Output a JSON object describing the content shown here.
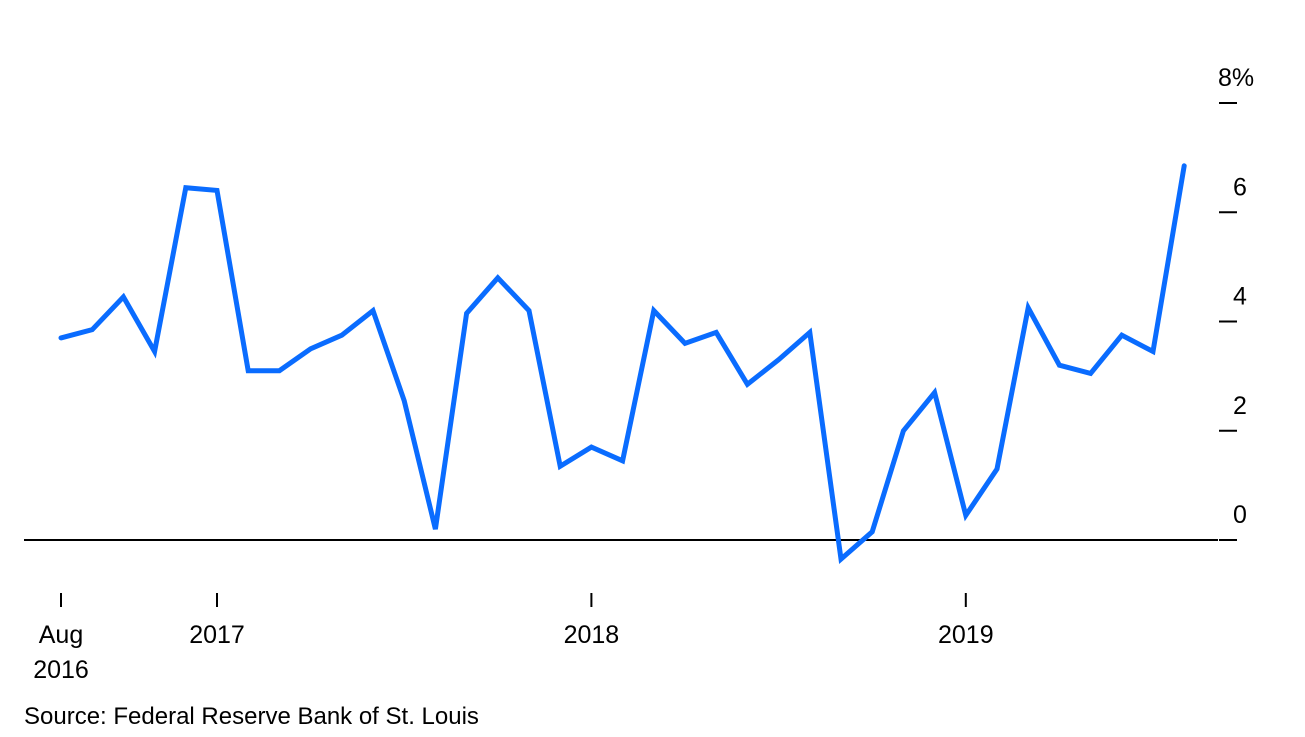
{
  "chart_data": {
    "type": "line",
    "ylim": [
      0,
      8
    ],
    "y_ticks": [
      {
        "value": 8,
        "label": "8%"
      },
      {
        "value": 6,
        "label": "6"
      },
      {
        "value": 4,
        "label": "4"
      },
      {
        "value": 2,
        "label": "2"
      },
      {
        "value": 0,
        "label": "0"
      }
    ],
    "x_ticks": [
      {
        "date": "2016-08",
        "label": [
          "Aug",
          "2016"
        ]
      },
      {
        "date": "2017-01",
        "label": [
          "2017"
        ]
      },
      {
        "date": "2018-01",
        "label": [
          "2018"
        ]
      },
      {
        "date": "2019-01",
        "label": [
          "2019"
        ]
      }
    ],
    "zero_line": true,
    "grid": false,
    "series": [
      {
        "color": "#0a6cff",
        "points": [
          {
            "x": "2016-08",
            "y": 3.7
          },
          {
            "x": "2016-09",
            "y": 3.85
          },
          {
            "x": "2016-10",
            "y": 4.45
          },
          {
            "x": "2016-11",
            "y": 3.45
          },
          {
            "x": "2016-12",
            "y": 6.45
          },
          {
            "x": "2017-01",
            "y": 6.4
          },
          {
            "x": "2017-02",
            "y": 3.1
          },
          {
            "x": "2017-03",
            "y": 3.1
          },
          {
            "x": "2017-04",
            "y": 3.5
          },
          {
            "x": "2017-05",
            "y": 3.75
          },
          {
            "x": "2017-06",
            "y": 4.2
          },
          {
            "x": "2017-07",
            "y": 2.55
          },
          {
            "x": "2017-08",
            "y": 0.2
          },
          {
            "x": "2017-09",
            "y": 4.15
          },
          {
            "x": "2017-10",
            "y": 4.8
          },
          {
            "x": "2017-11",
            "y": 4.2
          },
          {
            "x": "2017-12",
            "y": 1.35
          },
          {
            "x": "2018-01",
            "y": 1.7
          },
          {
            "x": "2018-02",
            "y": 1.45
          },
          {
            "x": "2018-03",
            "y": 4.2
          },
          {
            "x": "2018-04",
            "y": 3.6
          },
          {
            "x": "2018-05",
            "y": 3.8
          },
          {
            "x": "2018-06",
            "y": 2.85
          },
          {
            "x": "2018-07",
            "y": 3.3
          },
          {
            "x": "2018-08",
            "y": 3.8
          },
          {
            "x": "2018-09",
            "y": -0.35
          },
          {
            "x": "2018-10",
            "y": 0.15
          },
          {
            "x": "2018-11",
            "y": 2.0
          },
          {
            "x": "2018-12",
            "y": 2.7
          },
          {
            "x": "2019-01",
            "y": 0.45
          },
          {
            "x": "2019-02",
            "y": 1.3
          },
          {
            "x": "2019-03",
            "y": 4.25
          },
          {
            "x": "2019-04",
            "y": 3.2
          },
          {
            "x": "2019-05",
            "y": 3.05
          },
          {
            "x": "2019-06",
            "y": 3.75
          },
          {
            "x": "2019-07",
            "y": 3.45
          },
          {
            "x": "2019-08",
            "y": 6.85
          }
        ]
      }
    ]
  },
  "footer": {
    "source": "Source: Federal Reserve Bank of St. Louis"
  }
}
